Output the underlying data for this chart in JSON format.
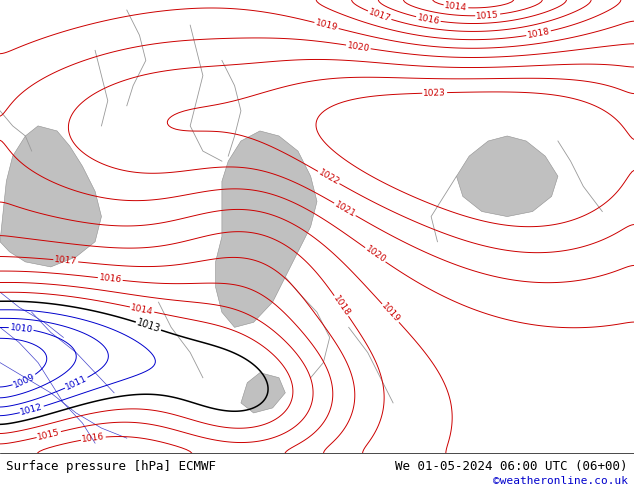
{
  "title_left": "Surface pressure [hPa] ECMWF",
  "title_right": "We 01-05-2024 06:00 UTC (06+00)",
  "watermark": "©weatheronline.co.uk",
  "bg_color": "#b5e878",
  "water_color": "#c8c8c8",
  "contour_color_red": "#cc0000",
  "contour_color_blue": "#0000cc",
  "contour_color_black": "#000000",
  "label_fontsize": 6.5,
  "footer_fontsize": 9,
  "watermark_fontsize": 8,
  "figsize": [
    6.34,
    4.9
  ],
  "dpi": 100
}
